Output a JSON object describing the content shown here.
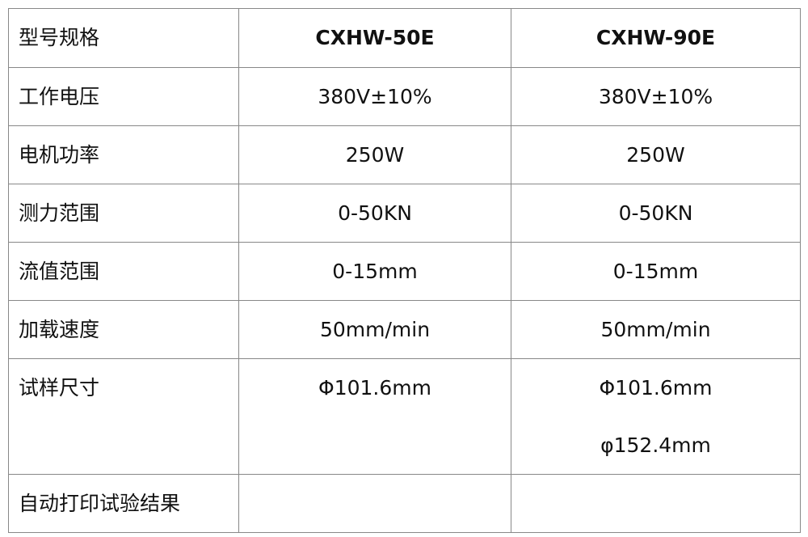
{
  "table": {
    "header": [
      "型号规格",
      "CXHW-50E",
      "CXHW-90E"
    ],
    "rows": [
      [
        "工作电压",
        [
          "380V±10%"
        ],
        [
          "380V±10%"
        ]
      ],
      [
        "电机功率",
        [
          "250W"
        ],
        [
          "250W"
        ]
      ],
      [
        "测力范围",
        [
          "0-50KN"
        ],
        [
          "0-50KN"
        ]
      ],
      [
        "流值范围",
        [
          "0-15mm"
        ],
        [
          "0-15mm"
        ]
      ],
      [
        "加载速度",
        [
          "50mm/min"
        ],
        [
          "50mm/min"
        ]
      ],
      [
        "试样尺寸",
        [
          "Φ101.6mm"
        ],
        [
          "Φ101.6mm",
          "φ152.4mm"
        ]
      ],
      [
        "自动打印试验结果"
      ]
    ]
  }
}
